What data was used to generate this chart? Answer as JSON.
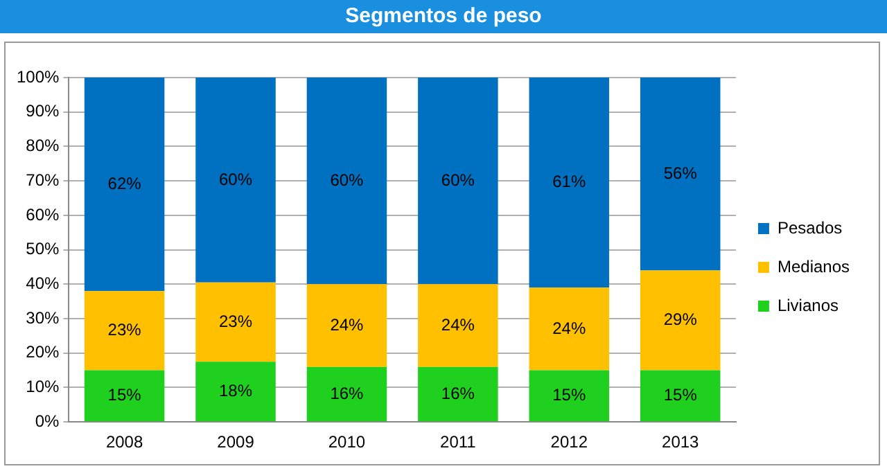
{
  "chart_data": {
    "type": "bar",
    "title": "Segmentos de peso",
    "categories": [
      "2008",
      "2009",
      "2010",
      "2011",
      "2012",
      "2013"
    ],
    "series": [
      {
        "name": "Livianos",
        "color": "#1fd01f",
        "values": [
          15,
          17.5,
          16,
          16,
          15,
          15
        ],
        "value_labels": [
          "15%",
          "18%",
          "16%",
          "16%",
          "15%",
          "15%"
        ]
      },
      {
        "name": "Medianos",
        "color": "#ffc000",
        "values": [
          23,
          23,
          24,
          24,
          24,
          29
        ],
        "value_labels": [
          "23%",
          "23%",
          "24%",
          "24%",
          "24%",
          "29%"
        ]
      },
      {
        "name": "Pesados",
        "color": "#0070c0",
        "values": [
          62,
          59.5,
          60,
          60,
          61,
          56
        ],
        "value_labels": [
          "62%",
          "60%",
          "60%",
          "60%",
          "61%",
          "56%"
        ]
      }
    ],
    "stacked": true,
    "ylim": [
      0,
      100
    ],
    "yticks": [
      {
        "value": 0,
        "label": "0%"
      },
      {
        "value": 10,
        "label": "10%"
      },
      {
        "value": 20,
        "label": "20%"
      },
      {
        "value": 30,
        "label": "30%"
      },
      {
        "value": 40,
        "label": "40%"
      },
      {
        "value": 50,
        "label": "50%"
      },
      {
        "value": 60,
        "label": "60%"
      },
      {
        "value": 70,
        "label": "70%"
      },
      {
        "value": 80,
        "label": "80%"
      },
      {
        "value": 90,
        "label": "90%"
      },
      {
        "value": 100,
        "label": "100%"
      }
    ],
    "grid": "y",
    "legend": "right"
  }
}
